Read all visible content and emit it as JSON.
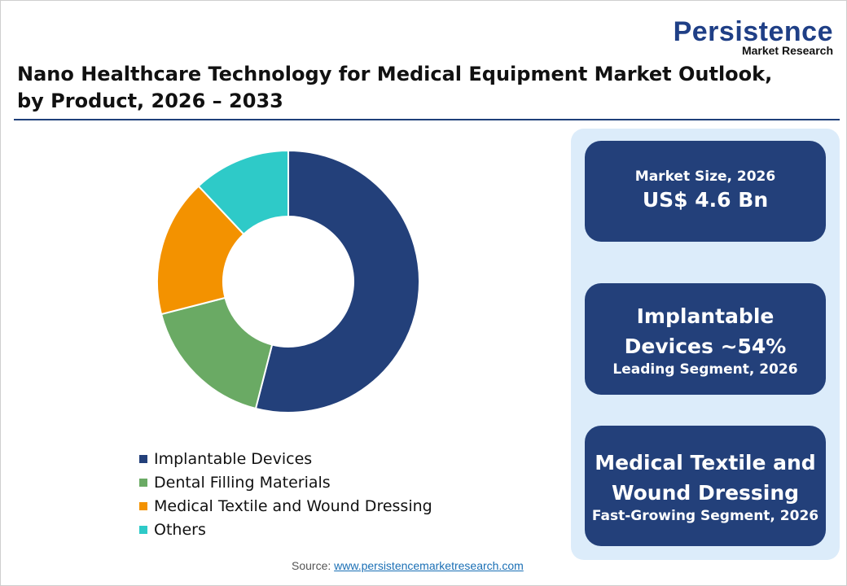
{
  "logo": {
    "main": "Persistence",
    "sub": "Market Research"
  },
  "title_line1": "Nano Healthcare Technology for Medical Equipment Market Outlook,",
  "title_line2": "by Product, 2026 – 2033",
  "chart_data": {
    "type": "pie",
    "donut": true,
    "categories": [
      "Implantable Devices",
      "Dental Filling Materials",
      "Medical Textile and Wound Dressing",
      "Others"
    ],
    "values": [
      54,
      17,
      17,
      12
    ],
    "colors": [
      "#23407a",
      "#6aaa64",
      "#f39200",
      "#2ecac8"
    ],
    "legend_position": "bottom"
  },
  "cards": [
    {
      "label": "Market Size, 2026",
      "value": "US$ 4.6 Bn"
    },
    {
      "value_line1": "Implantable",
      "value_line2": "Devices ~54%",
      "label": "Leading Segment, 2026"
    },
    {
      "value_line1": "Medical Textile and",
      "value_line2": "Wound Dressing",
      "label": "Fast-Growing Segment, 2026"
    }
  ],
  "source": {
    "label": "Source:",
    "link": "www.persistencemarketresearch.com"
  }
}
